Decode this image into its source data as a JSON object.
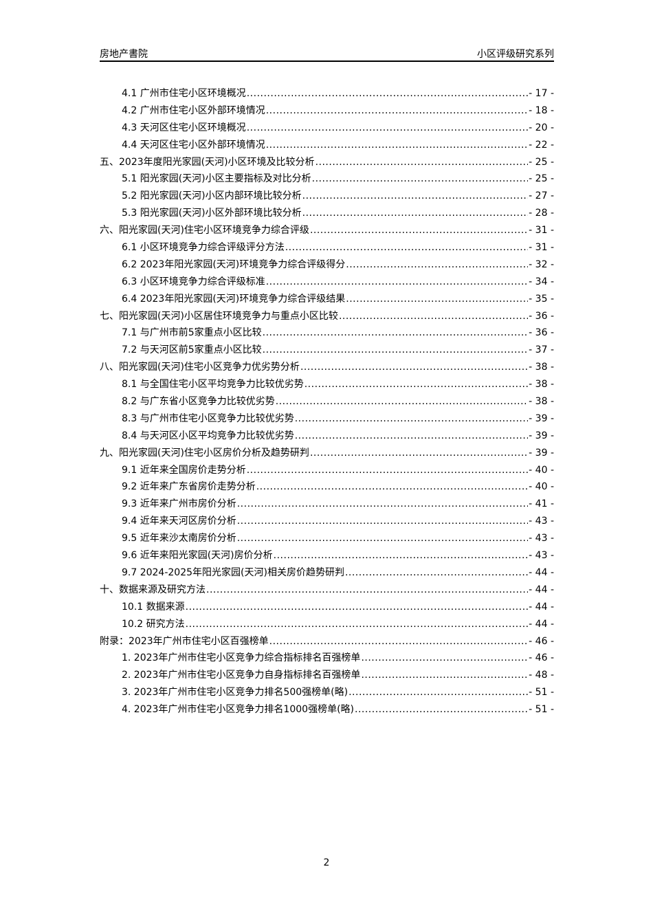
{
  "header": {
    "left": "房地产書院",
    "right": "小区评级研究系列"
  },
  "toc": [
    {
      "level": 2,
      "label": "4.1 广州市住宅小区环境概况",
      "page": "- 17 -"
    },
    {
      "level": 2,
      "label": "4.2 广州市住宅小区外部环境情况",
      "page": "- 18 -"
    },
    {
      "level": 2,
      "label": "4.3 天河区住宅小区环境概况",
      "page": "- 20 -"
    },
    {
      "level": 2,
      "label": "4.4 天河区住宅小区外部环境情况",
      "page": "- 22 -"
    },
    {
      "level": 1,
      "label": "五、2023年度阳光家园(天河)小区环境及比较分析",
      "page": "- 25 -"
    },
    {
      "level": 2,
      "label": "5.1 阳光家园(天河)小区主要指标及对比分析",
      "page": "- 25 -"
    },
    {
      "level": 2,
      "label": "5.2 阳光家园(天河)小区内部环境比较分析",
      "page": "- 27 -"
    },
    {
      "level": 2,
      "label": "5.3 阳光家园(天河)小区外部环境比较分析",
      "page": "- 28 -"
    },
    {
      "level": 1,
      "label": "六、阳光家园(天河)住宅小区环境竞争力综合评级",
      "page": "- 31 -"
    },
    {
      "level": 2,
      "label": "6.1 小区环境竞争力综合评级评分方法",
      "page": "- 31 -"
    },
    {
      "level": 2,
      "label": "6.2 2023年阳光家园(天河)环境竞争力综合评级得分",
      "page": "- 32 -"
    },
    {
      "level": 2,
      "label": "6.3 小区环境竞争力综合评级标准",
      "page": "- 34 -"
    },
    {
      "level": 2,
      "label": "6.4 2023年阳光家园(天河)环境竞争力综合评级结果",
      "page": "- 35 -"
    },
    {
      "level": 1,
      "label": "七、阳光家园(天河)小区居住环境竞争力与重点小区比较",
      "page": "- 36 -"
    },
    {
      "level": 2,
      "label": "7.1 与广州市前5家重点小区比较",
      "page": "- 36 -"
    },
    {
      "level": 2,
      "label": "7.2 与天河区前5家重点小区比较",
      "page": "- 37 -"
    },
    {
      "level": 1,
      "label": "八、阳光家园(天河)住宅小区竞争力优劣势分析",
      "page": "- 38 -"
    },
    {
      "level": 2,
      "label": "8.1 与全国住宅小区平均竞争力比较优劣势",
      "page": "- 38 -"
    },
    {
      "level": 2,
      "label": "8.2 与广东省小区竞争力比较优劣势",
      "page": "- 38 -"
    },
    {
      "level": 2,
      "label": "8.3 与广州市住宅小区竞争力比较优劣势",
      "page": "- 39 -"
    },
    {
      "level": 2,
      "label": "8.4 与天河区小区平均竞争力比较优劣势",
      "page": "- 39 -"
    },
    {
      "level": 1,
      "label": "九、阳光家园(天河)住宅小区房价分析及趋势研判",
      "page": "- 39 -"
    },
    {
      "level": 2,
      "label": "9.1 近年来全国房价走势分析",
      "page": "- 40 -"
    },
    {
      "level": 2,
      "label": "9.2 近年来广东省房价走势分析",
      "page": "- 40 -"
    },
    {
      "level": 2,
      "label": "9.3 近年来广州市房价分析",
      "page": "- 41 -"
    },
    {
      "level": 2,
      "label": "9.4 近年来天河区房价分析",
      "page": "- 43 -"
    },
    {
      "level": 2,
      "label": "9.5 近年来沙太南房价分析",
      "page": "- 43 -"
    },
    {
      "level": 2,
      "label": "9.6 近年来阳光家园(天河)房价分析",
      "page": "- 43 -"
    },
    {
      "level": 2,
      "label": "9.7 2024-2025年阳光家园(天河)相关房价趋势研判",
      "page": "- 44 -"
    },
    {
      "level": 1,
      "label": "十、数据来源及研究方法",
      "page": "- 44 -"
    },
    {
      "level": 2,
      "label": "10.1 数据来源",
      "page": "- 44 -"
    },
    {
      "level": 2,
      "label": "10.2 研究方法",
      "page": "- 44 -"
    },
    {
      "level": 1,
      "label": "附录：2023年广州市住宅小区百强榜单",
      "page": "- 46 -"
    },
    {
      "level": 2,
      "label": "1. 2023年广州市住宅小区竞争力综合指标排名百强榜单",
      "page": "- 46 -"
    },
    {
      "level": 2,
      "label": "2. 2023年广州市住宅小区竞争力自身指标排名百强榜单",
      "page": "- 48 -"
    },
    {
      "level": 2,
      "label": "3. 2023年广州市住宅小区竞争力排名500强榜单(略)",
      "page": "- 51 -"
    },
    {
      "level": 2,
      "label": "4. 2023年广州市住宅小区竞争力排名1000强榜单(略)",
      "page": "- 51 -"
    }
  ],
  "footer": {
    "page_number": "2"
  }
}
